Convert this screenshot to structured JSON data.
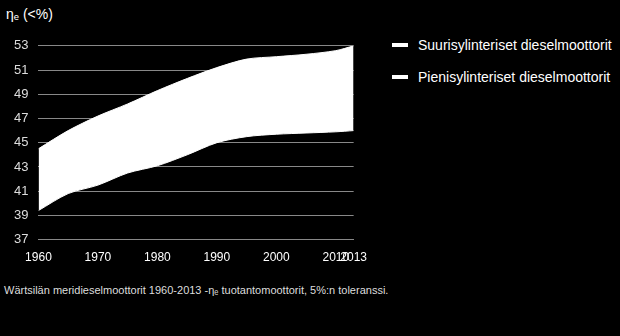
{
  "chart_data": {
    "type": "area",
    "y_label": "ηₑ (<%)",
    "caption": "Wärtsilän meridieselmoottorit 1960-2013 -ηₑ tuotantomoottorit, 5%:n toleranssi.",
    "x": [
      1960,
      1965,
      1970,
      1975,
      1980,
      1985,
      1990,
      1995,
      2000,
      2005,
      2010,
      2013
    ],
    "series": [
      {
        "name": "Suurisylinteriset dieselmoottorit",
        "color": "#ffffff",
        "line_style": "solid",
        "values": [
          44.5,
          46.0,
          47.2,
          48.2,
          49.3,
          50.3,
          51.2,
          51.9,
          52.1,
          52.3,
          52.6,
          53.0
        ]
      },
      {
        "name": "Pienisylinteriset dieselmoottorit",
        "color": "#ffffff",
        "line_style": "solid",
        "values": [
          39.4,
          40.8,
          41.5,
          42.5,
          43.1,
          44.0,
          45.0,
          45.5,
          45.7,
          45.8,
          45.9,
          46.0
        ]
      }
    ],
    "xlim": [
      1960,
      2013
    ],
    "xticks": [
      1960,
      1970,
      1980,
      1990,
      2000,
      2010,
      2013
    ],
    "ylim": [
      37,
      53
    ],
    "yticks": [
      37,
      39,
      41,
      43,
      45,
      47,
      49,
      51,
      53
    ],
    "grid": true,
    "legend": "right"
  }
}
